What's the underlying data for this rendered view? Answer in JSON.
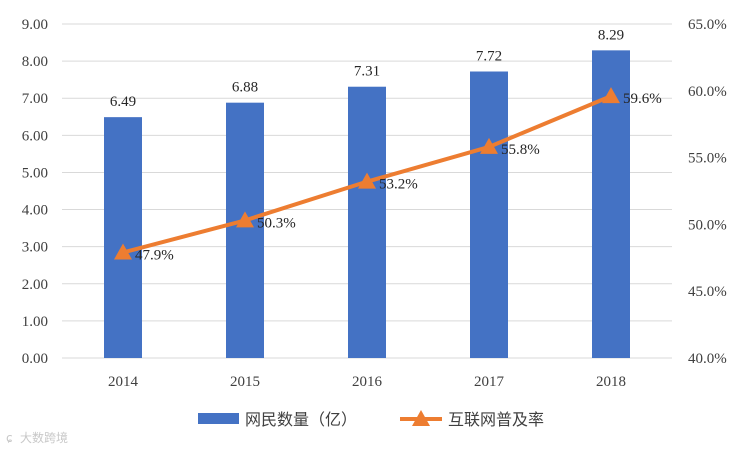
{
  "chart_data": {
    "type": "bar",
    "categories": [
      "2014",
      "2015",
      "2016",
      "2017",
      "2018"
    ],
    "series": [
      {
        "name": "网民数量（亿）",
        "type": "bar",
        "axis": "left",
        "color": "#4472C4",
        "values": [
          6.49,
          6.88,
          7.31,
          7.72,
          8.29
        ],
        "labels": [
          "6.49",
          "6.88",
          "7.31",
          "7.72",
          "8.29"
        ]
      },
      {
        "name": "互联网普及率",
        "type": "line",
        "axis": "right",
        "marker": "triangle",
        "color": "#ED7D31",
        "values": [
          47.9,
          50.3,
          53.2,
          55.8,
          59.6
        ],
        "labels": [
          "47.9%",
          "50.3%",
          "53.2%",
          "55.8%",
          "59.6%"
        ]
      }
    ],
    "y_left": {
      "ylim": [
        0,
        9
      ],
      "ticks": [
        "0.00",
        "1.00",
        "2.00",
        "3.00",
        "4.00",
        "5.00",
        "6.00",
        "7.00",
        "8.00",
        "9.00"
      ]
    },
    "y_right": {
      "ylim": [
        40,
        65
      ],
      "ticks": [
        "40.0%",
        "45.0%",
        "50.0%",
        "55.0%",
        "60.0%",
        "65.0%"
      ]
    },
    "grid": true,
    "legend_position": "bottom",
    "title": "",
    "xlabel": "",
    "ylabel": ""
  },
  "watermark": "大数跨境"
}
